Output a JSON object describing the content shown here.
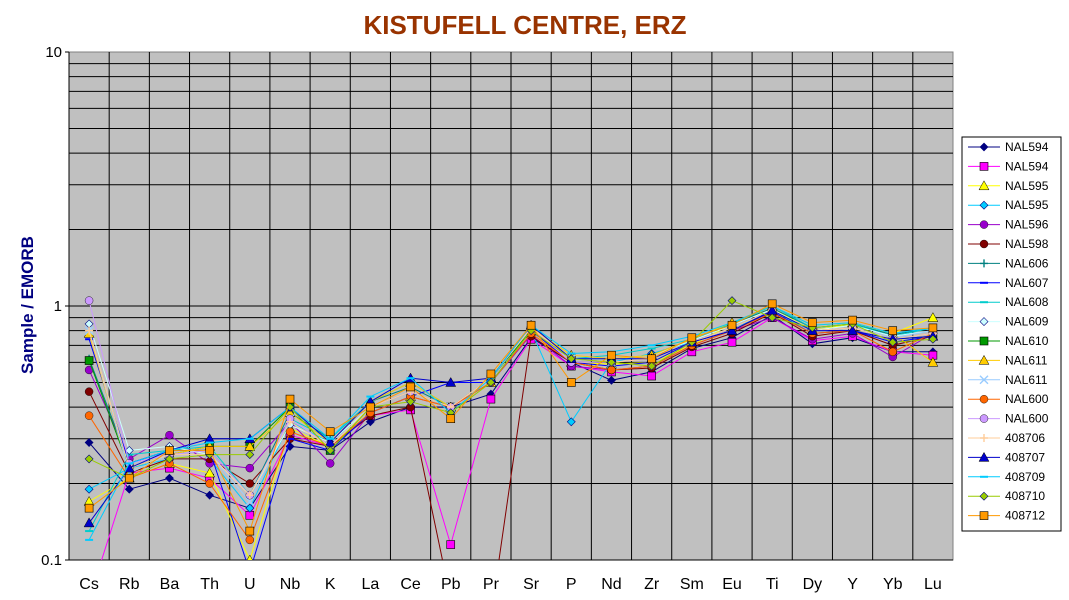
{
  "chart_data": {
    "type": "line",
    "title": "KISTUFELL CENTRE, ERZ",
    "ylabel": "Sample / EMORB",
    "xlabel": "",
    "yscale": "log",
    "ylim": [
      0.1,
      10
    ],
    "ytick_labels": [
      "0.1",
      "1",
      "10"
    ],
    "ytick_values": [
      0.1,
      1,
      10
    ],
    "grid": true,
    "legend": "right",
    "categories": [
      "Cs",
      "Rb",
      "Ba",
      "Th",
      "U",
      "Nb",
      "K",
      "La",
      "Ce",
      "Pb",
      "Pr",
      "Sr",
      "P",
      "Nd",
      "Zr",
      "Sm",
      "Eu",
      "Ti",
      "Dy",
      "Y",
      "Yb",
      "Lu"
    ],
    "series": [
      {
        "name": "NAL594",
        "color": "#000080",
        "marker": "diamond",
        "values": [
          0.29,
          0.19,
          0.21,
          0.18,
          0.16,
          0.28,
          0.27,
          0.35,
          0.4,
          0.4,
          0.45,
          0.75,
          0.6,
          0.51,
          0.55,
          0.68,
          0.75,
          0.92,
          0.71,
          0.75,
          0.66,
          0.66
        ]
      },
      {
        "name": "NAL594",
        "color": "#FF00FF",
        "marker": "square",
        "values": [
          0.07,
          0.22,
          0.23,
          0.21,
          0.15,
          0.31,
          0.28,
          0.37,
          0.39,
          0.115,
          0.43,
          0.74,
          0.58,
          0.55,
          0.53,
          0.66,
          0.72,
          0.9,
          0.73,
          0.76,
          0.66,
          0.64
        ]
      },
      {
        "name": "NAL595",
        "color": "#FFFF00",
        "marker": "triangle",
        "values": [
          0.17,
          0.21,
          0.24,
          0.22,
          0.1,
          0.33,
          0.28,
          0.38,
          0.44,
          0.4,
          0.5,
          0.78,
          0.6,
          0.59,
          0.6,
          0.7,
          0.85,
          0.98,
          0.8,
          0.85,
          0.78,
          0.9
        ]
      },
      {
        "name": "NAL595",
        "color": "#00CCFF",
        "marker": "diamond",
        "values": [
          0.19,
          0.23,
          0.25,
          0.25,
          0.16,
          0.35,
          0.29,
          0.4,
          0.46,
          0.4,
          0.52,
          0.8,
          0.35,
          0.6,
          0.65,
          0.72,
          0.82,
          0.94,
          0.8,
          0.82,
          0.74,
          0.78
        ]
      },
      {
        "name": "NAL596",
        "color": "#9900CC",
        "marker": "circle",
        "values": [
          0.56,
          0.25,
          0.31,
          0.24,
          0.23,
          0.35,
          0.24,
          0.38,
          0.44,
          0.4,
          0.5,
          0.77,
          0.58,
          0.56,
          0.58,
          0.7,
          0.8,
          0.9,
          0.74,
          0.78,
          0.63,
          0.78
        ]
      },
      {
        "name": "NAL598",
        "color": "#800000",
        "marker": "circle",
        "values": [
          0.46,
          0.22,
          0.25,
          0.25,
          0.2,
          0.3,
          0.28,
          0.37,
          0.4,
          0.07,
          0.06,
          0.76,
          0.6,
          0.56,
          0.57,
          0.69,
          0.78,
          0.94,
          0.76,
          0.8,
          0.7,
          0.76
        ]
      },
      {
        "name": "NAL606",
        "color": "#008080",
        "marker": "plus",
        "values": [
          0.62,
          0.24,
          0.27,
          0.27,
          0.18,
          0.38,
          0.3,
          0.42,
          0.48,
          0.4,
          0.52,
          0.82,
          0.62,
          0.62,
          0.64,
          0.74,
          0.85,
          0.98,
          0.82,
          0.85,
          0.77,
          0.82
        ]
      },
      {
        "name": "NAL607",
        "color": "#0000FF",
        "marker": "dash",
        "values": [
          0.74,
          0.24,
          0.27,
          0.27,
          0.09,
          0.3,
          0.27,
          0.38,
          0.44,
          0.5,
          0.5,
          0.8,
          0.6,
          0.58,
          0.6,
          0.72,
          0.8,
          0.95,
          0.78,
          0.8,
          0.72,
          0.76
        ]
      },
      {
        "name": "NAL608",
        "color": "#00CCCC",
        "marker": "dash",
        "values": [
          0.13,
          0.26,
          0.27,
          0.28,
          0.18,
          0.36,
          0.3,
          0.42,
          0.5,
          0.4,
          0.52,
          0.84,
          0.62,
          0.64,
          0.68,
          0.74,
          0.85,
          1.0,
          0.82,
          0.85,
          0.76,
          0.82
        ]
      },
      {
        "name": "NAL609",
        "color": "#CCFFFF",
        "marker": "diamond",
        "values": [
          0.85,
          0.27,
          0.28,
          0.26,
          0.18,
          0.34,
          0.29,
          0.4,
          0.46,
          0.4,
          0.52,
          0.82,
          0.62,
          0.62,
          0.64,
          0.73,
          0.84,
          0.97,
          0.8,
          0.84,
          0.76,
          0.8
        ]
      },
      {
        "name": "NAL610",
        "color": "#009900",
        "marker": "square",
        "values": [
          0.61,
          0.23,
          0.26,
          0.28,
          0.28,
          0.4,
          0.27,
          0.4,
          0.46,
          0.4,
          0.52,
          0.8,
          0.62,
          0.6,
          0.62,
          0.72,
          0.82,
          0.96,
          0.8,
          0.82,
          0.74,
          0.76
        ]
      },
      {
        "name": "NAL611",
        "color": "#FFCC00",
        "marker": "triangle",
        "values": [
          0.78,
          0.22,
          0.26,
          0.28,
          0.28,
          0.38,
          0.29,
          0.42,
          0.5,
          0.4,
          0.52,
          0.82,
          0.64,
          0.62,
          0.64,
          0.74,
          0.86,
          1.0,
          0.84,
          0.86,
          0.78,
          0.6
        ]
      },
      {
        "name": "NAL611",
        "color": "#99CCFF",
        "marker": "x",
        "values": [
          0.8,
          0.22,
          0.26,
          0.26,
          0.17,
          0.36,
          0.28,
          0.4,
          0.46,
          0.4,
          0.52,
          0.82,
          0.62,
          0.6,
          0.62,
          0.72,
          0.82,
          0.96,
          0.8,
          0.82,
          0.75,
          0.8
        ]
      },
      {
        "name": "NAL600",
        "color": "#FF6600",
        "marker": "circle",
        "values": [
          0.37,
          0.21,
          0.24,
          0.2,
          0.12,
          0.32,
          0.28,
          0.38,
          0.44,
          0.4,
          0.5,
          0.78,
          0.6,
          0.56,
          0.58,
          0.7,
          0.8,
          0.94,
          0.78,
          0.8,
          0.66,
          0.78
        ]
      },
      {
        "name": "NAL600",
        "color": "#CC99FF",
        "marker": "circle",
        "values": [
          1.05,
          0.24,
          0.26,
          0.27,
          0.18,
          0.36,
          0.28,
          0.4,
          0.46,
          0.4,
          0.52,
          0.82,
          0.6,
          0.6,
          0.62,
          0.72,
          0.82,
          0.96,
          0.8,
          0.82,
          0.74,
          0.78
        ]
      },
      {
        "name": "408706",
        "color": "#FFCC99",
        "marker": "plus",
        "values": [
          0.8,
          0.23,
          0.26,
          0.26,
          0.18,
          0.35,
          0.28,
          0.4,
          0.46,
          0.4,
          0.52,
          0.82,
          0.62,
          0.6,
          0.62,
          0.72,
          0.82,
          0.96,
          0.8,
          0.82,
          0.74,
          0.78
        ]
      },
      {
        "name": "408707",
        "color": "#0000CC",
        "marker": "triangle",
        "values": [
          0.14,
          0.23,
          0.27,
          0.3,
          0.3,
          0.4,
          0.29,
          0.42,
          0.52,
          0.5,
          0.52,
          0.84,
          0.62,
          0.62,
          0.62,
          0.72,
          0.8,
          0.96,
          0.8,
          0.8,
          0.74,
          0.76
        ]
      },
      {
        "name": "408709",
        "color": "#00CCFF",
        "marker": "dash",
        "values": [
          0.12,
          0.24,
          0.27,
          0.29,
          0.3,
          0.4,
          0.3,
          0.44,
          0.52,
          0.38,
          0.52,
          0.84,
          0.65,
          0.66,
          0.7,
          0.76,
          0.86,
          1.0,
          0.84,
          0.86,
          0.78,
          0.82
        ]
      },
      {
        "name": "408710",
        "color": "#99CC00",
        "marker": "diamond",
        "values": [
          0.25,
          0.21,
          0.25,
          0.26,
          0.26,
          0.4,
          0.27,
          0.4,
          0.42,
          0.38,
          0.5,
          0.8,
          0.62,
          0.6,
          0.58,
          0.72,
          1.05,
          0.9,
          0.82,
          0.85,
          0.72,
          0.74
        ]
      },
      {
        "name": "408712",
        "color": "#FF9900",
        "marker": "square",
        "values": [
          0.16,
          0.21,
          0.27,
          0.27,
          0.13,
          0.43,
          0.32,
          0.4,
          0.48,
          0.36,
          0.54,
          0.84,
          0.5,
          0.64,
          0.62,
          0.75,
          0.84,
          1.02,
          0.86,
          0.88,
          0.8,
          0.82
        ]
      }
    ]
  }
}
